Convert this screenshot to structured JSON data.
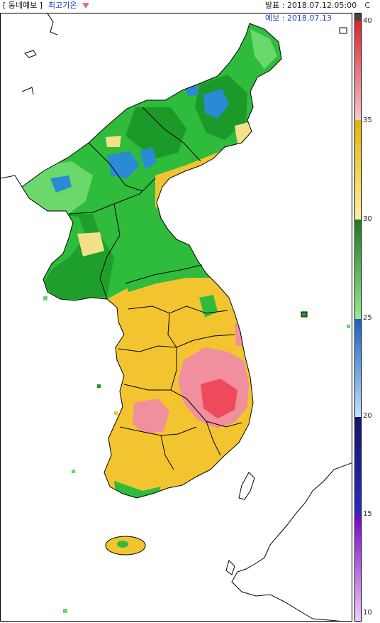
{
  "header": {
    "type_label": "[ 동네예보 ]",
    "element_label": "최고기온",
    "dropdown_icon": "triangle-down-icon",
    "issued_label": "발표 : 2018.07.12.05:00",
    "unit": "C",
    "forecast_label": "예보 : 2018.07.13"
  },
  "colorbar": {
    "ticks": [
      "40",
      "35",
      "30",
      "25",
      "20",
      "15",
      "10"
    ],
    "segments": [
      {
        "range": "35-40",
        "from": "#e0202a",
        "to": "#f7c9cc"
      },
      {
        "range": "30-35",
        "from": "#e7b400",
        "to": "#fff29a"
      },
      {
        "range": "25-30",
        "from": "#1d7a1d",
        "to": "#8ef08e"
      },
      {
        "range": "20-25",
        "from": "#1560c8",
        "to": "#bfe4ff"
      },
      {
        "range": "15-20",
        "from": "#121466",
        "to": "#2a2ad0"
      },
      {
        "range": "10-15",
        "from": "#7a00c8",
        "to": "#f0ccff"
      }
    ]
  },
  "map": {
    "colors": {
      "hot": "#f08f9e",
      "very_hot": "#ee3344",
      "warm": "#f2c530",
      "light_warm": "#f5e08a",
      "green_dark": "#1b9a2a",
      "green": "#2fbb3b",
      "green_light": "#6ad86a",
      "blue": "#2a8ad6",
      "sea": "#ffffff"
    }
  }
}
